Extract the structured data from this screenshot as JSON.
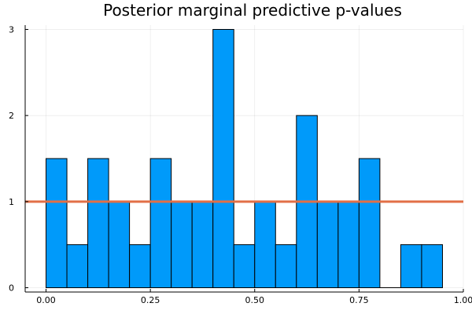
{
  "chart_data": {
    "type": "bar",
    "title": "Posterior marginal predictive p-values",
    "xlabel": "",
    "ylabel": "",
    "xlim": [
      -0.05,
      1.0
    ],
    "ylim": [
      -0.05,
      3.05
    ],
    "x_ticks": [
      {
        "value": 0.0,
        "label": "0.00"
      },
      {
        "value": 0.25,
        "label": "0.25"
      },
      {
        "value": 0.5,
        "label": "0.50"
      },
      {
        "value": 0.75,
        "label": "0.75"
      },
      {
        "value": 1.0,
        "label": "1.00"
      }
    ],
    "y_ticks": [
      {
        "value": 0,
        "label": "0"
      },
      {
        "value": 1,
        "label": "1"
      },
      {
        "value": 2,
        "label": "2"
      },
      {
        "value": 3,
        "label": "3"
      }
    ],
    "bin_width": 0.05,
    "bin_edges_start": [
      0.0,
      0.05,
      0.1,
      0.15,
      0.2,
      0.25,
      0.3,
      0.35,
      0.4,
      0.45,
      0.5,
      0.55,
      0.6,
      0.65,
      0.7,
      0.75,
      0.8,
      0.85,
      0.9
    ],
    "values": [
      1.5,
      0.5,
      1.5,
      1.0,
      0.5,
      1.5,
      1.0,
      1.0,
      3.0,
      0.5,
      1.0,
      0.5,
      2.0,
      1.0,
      1.0,
      1.5,
      0.0,
      0.5,
      0.5
    ],
    "reference_line_y": 1.0,
    "grid": true,
    "legend": "none",
    "colors": {
      "bar_fill": "#009AFA",
      "bar_stroke": "#000000",
      "reference_line": "#E26F46"
    }
  }
}
